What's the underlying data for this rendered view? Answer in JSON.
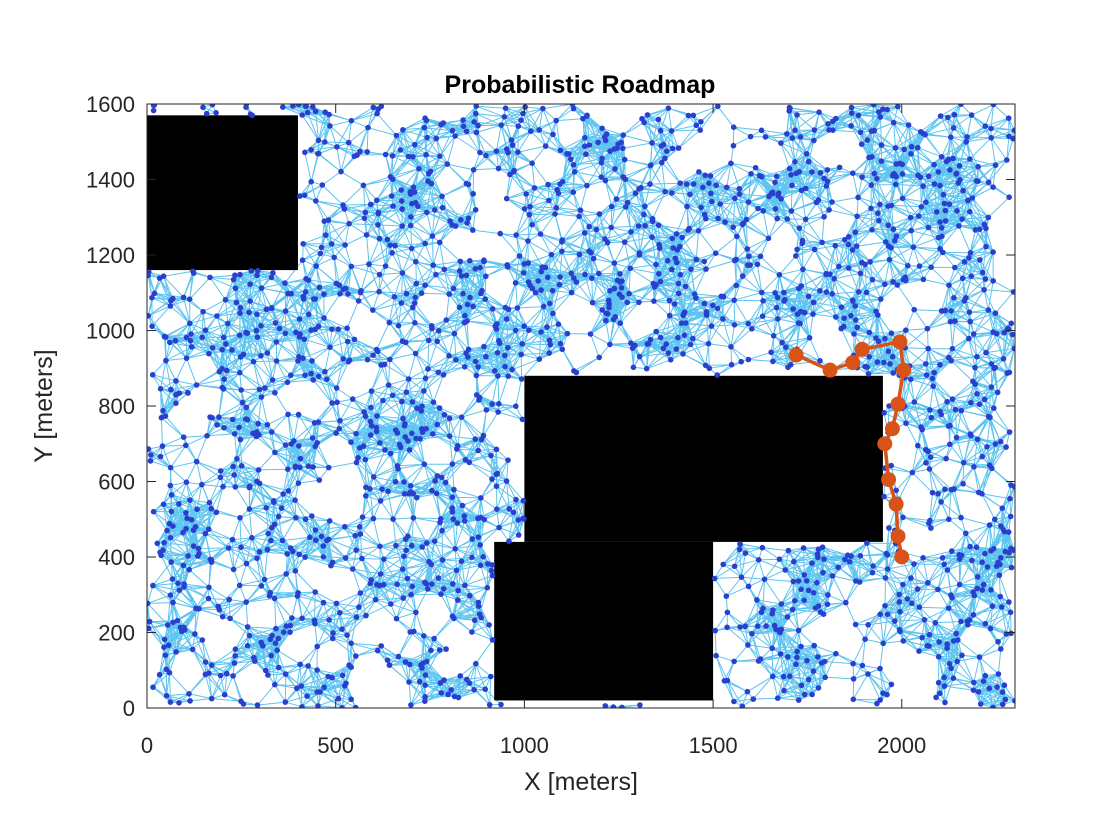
{
  "chart_data": {
    "type": "scatter",
    "title": "Probabilistic Roadmap",
    "xlabel": "X [meters]",
    "ylabel": "Y [meters]",
    "xlim": [
      0,
      2300
    ],
    "ylim": [
      0,
      1600
    ],
    "x_ticks": [
      0,
      500,
      1000,
      1500,
      2000
    ],
    "y_ticks": [
      0,
      200,
      400,
      600,
      800,
      1000,
      1200,
      1400,
      1600
    ],
    "x_tick_labels": [
      "0",
      "500",
      "1000",
      "1500",
      "2000"
    ],
    "y_tick_labels": [
      "0",
      "200",
      "400",
      "600",
      "800",
      "1000",
      "1200",
      "1400",
      "1600"
    ],
    "grid": false,
    "colors": {
      "edges": "#4DBEEE",
      "nodes": "#2B3FCF",
      "path": "#D95319",
      "obstacles": "#000000",
      "axes": "#262626"
    },
    "obstacles": [
      {
        "name": "top-left-block",
        "x_range": [
          0,
          400
        ],
        "y_range": [
          1160,
          1570
        ]
      },
      {
        "name": "center-block-upper",
        "x_range": [
          1000,
          1950
        ],
        "y_range": [
          440,
          880
        ]
      },
      {
        "name": "center-block-lower",
        "x_range": [
          920,
          1500
        ],
        "y_range": [
          20,
          440
        ]
      }
    ],
    "roadmap": {
      "node_count_approx": 2000,
      "random_seed": 7
    },
    "path": {
      "x": [
        1720,
        1810,
        1870,
        1895,
        1995,
        2005,
        1990,
        1975,
        1955,
        1965,
        1985,
        1990,
        2000
      ],
      "y": [
        935,
        895,
        915,
        950,
        970,
        895,
        805,
        740,
        700,
        605,
        540,
        455,
        400
      ]
    }
  }
}
